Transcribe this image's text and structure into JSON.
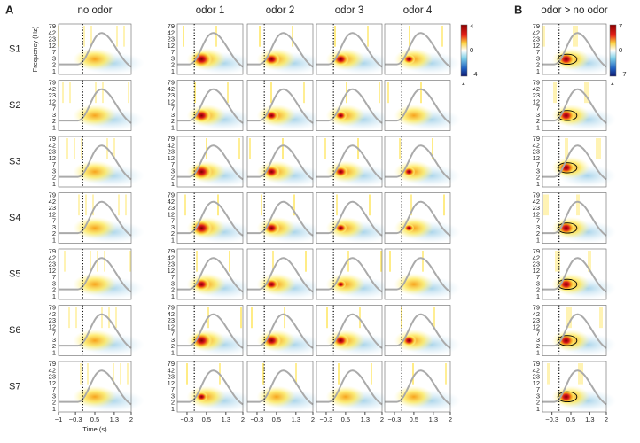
{
  "panel_labels": [
    "A",
    "B"
  ],
  "columns": [
    "no odor",
    "odor 1",
    "odor 2",
    "odor 3",
    "odor 4",
    "odor > no odor"
  ],
  "rows": [
    "S1",
    "S2",
    "S3",
    "S4",
    "S5",
    "S6",
    "S7"
  ],
  "yticks": [
    "79",
    "42",
    "23",
    "12",
    "7",
    "3",
    "2",
    "1"
  ],
  "ylabel": "Frequency (Hz)",
  "xticks_first": [
    "−1",
    "−0.3",
    "0.5",
    "1.3",
    "2"
  ],
  "xticks": [
    "−0.3",
    "0.5",
    "1.3",
    "2"
  ],
  "xlabel": "Time (s)",
  "colorbars": [
    {
      "max": "4",
      "mid": "0",
      "min": "−4",
      "unit": "z"
    },
    {
      "max": "7",
      "mid": "0",
      "min": "−7",
      "unit": "z"
    }
  ]
}
